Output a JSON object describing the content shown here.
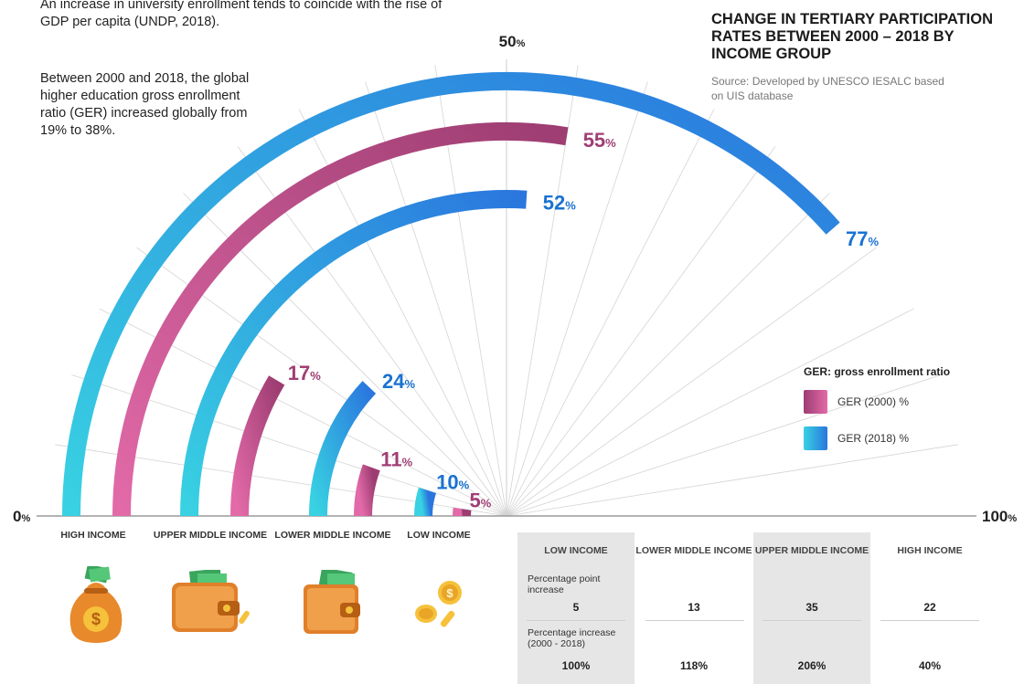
{
  "intro": {
    "line1": "An increase in university enrollment tends to coincide with the rise of GDP per capita (UNDP, 2018).",
    "line2": "Between 2000 and 2018, the global higher education gross enrollment ratio (GER) increased globally from 19% to 38%."
  },
  "header": {
    "title": "Change in tertiary participation rates between 2000 – 2018 by income group",
    "source": "Source: Developed by UNESCO IESALC based on UIS database"
  },
  "axis": {
    "min_label": "0",
    "mid_label": "50",
    "max_label": "100",
    "unit": "%"
  },
  "legend": {
    "title": "GER: gross enrollment ratio",
    "items": [
      {
        "label": "GER (2000) %"
      },
      {
        "label": "GER (2018) %"
      }
    ]
  },
  "chart_data": {
    "type": "radial-bar",
    "title": "Change in tertiary participation rates between 2000 – 2018 by income group",
    "scale": [
      0,
      100
    ],
    "categories": [
      "High income",
      "Upper middle income",
      "Lower middle income",
      "Low income"
    ],
    "series": [
      {
        "name": "GER (2000) %",
        "values": [
          55,
          17,
          11,
          5
        ],
        "color": "#b24b86"
      },
      {
        "name": "GER (2018) %",
        "values": [
          77,
          52,
          24,
          10
        ],
        "color": "#2b8fe0"
      }
    ],
    "value_labels": {
      "2000": [
        "55",
        "17",
        "11",
        "5"
      ],
      "2018": [
        "77",
        "52",
        "24",
        "10"
      ]
    },
    "colors": {
      "pink_start": "#e26aa8",
      "pink_end": "#9d3d72",
      "blue_start": "#38d2e2",
      "blue_end": "#2a76de",
      "label_pink": "#a03e74",
      "label_blue": "#1a72d0"
    }
  },
  "groups": [
    {
      "label": "High income",
      "icon": "money-bag-icon"
    },
    {
      "label": "Upper middle income",
      "icon": "wallet-icon"
    },
    {
      "label": "Lower middle income",
      "icon": "wallet-icon"
    },
    {
      "label": "Low income",
      "icon": "coins-icon"
    }
  ],
  "table": {
    "columns": [
      "Low income",
      "Lower middle income",
      "Upper middle income",
      "High income"
    ],
    "rows": [
      {
        "label": "Percentage point increase",
        "values": [
          "5",
          "13",
          "35",
          "22"
        ]
      },
      {
        "label": "Percentage increase (2000 - 2018)",
        "values": [
          "100%",
          "118%",
          "206%",
          "40%"
        ]
      }
    ]
  }
}
